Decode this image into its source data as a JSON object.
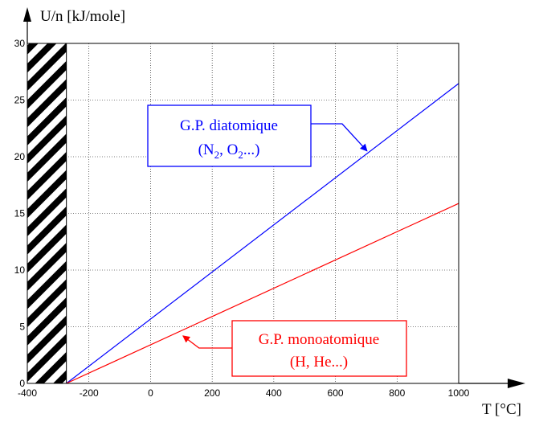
{
  "chart_data": {
    "type": "line",
    "xlabel": "T [°C]",
    "ylabel": "U/n [kJ/mole]",
    "xlim": [
      -400,
      1000
    ],
    "ylim": [
      0,
      30
    ],
    "x_ticks": [
      -400,
      -200,
      0,
      200,
      400,
      600,
      800,
      1000
    ],
    "y_ticks": [
      0,
      5,
      10,
      15,
      20,
      25,
      30
    ],
    "grid": true,
    "excluded_region": {
      "x_from": -400,
      "x_to": -273.15,
      "pattern": "diagonal-hatch"
    },
    "series": [
      {
        "name": "G.P. diatomique",
        "color": "#0000ff",
        "x": [
          -273.15,
          1000
        ],
        "y": [
          0,
          26.46
        ]
      },
      {
        "name": "G.P. monoatomique",
        "color": "#ff0000",
        "x": [
          -273.15,
          1000
        ],
        "y": [
          0,
          15.88
        ]
      }
    ],
    "annotations": [
      {
        "line1": "G.P. diatomique",
        "line2_base1": "(N",
        "sub1": "2",
        "mid": ", O",
        "sub2": "2",
        "end": "...)",
        "color": "#0000ff",
        "points_to": [
          700,
          20.3
        ]
      },
      {
        "line1": "G.P. monoatomique",
        "line2": "(H, He...)",
        "color": "#ff0000",
        "points_to": [
          100,
          4.55
        ]
      }
    ]
  }
}
